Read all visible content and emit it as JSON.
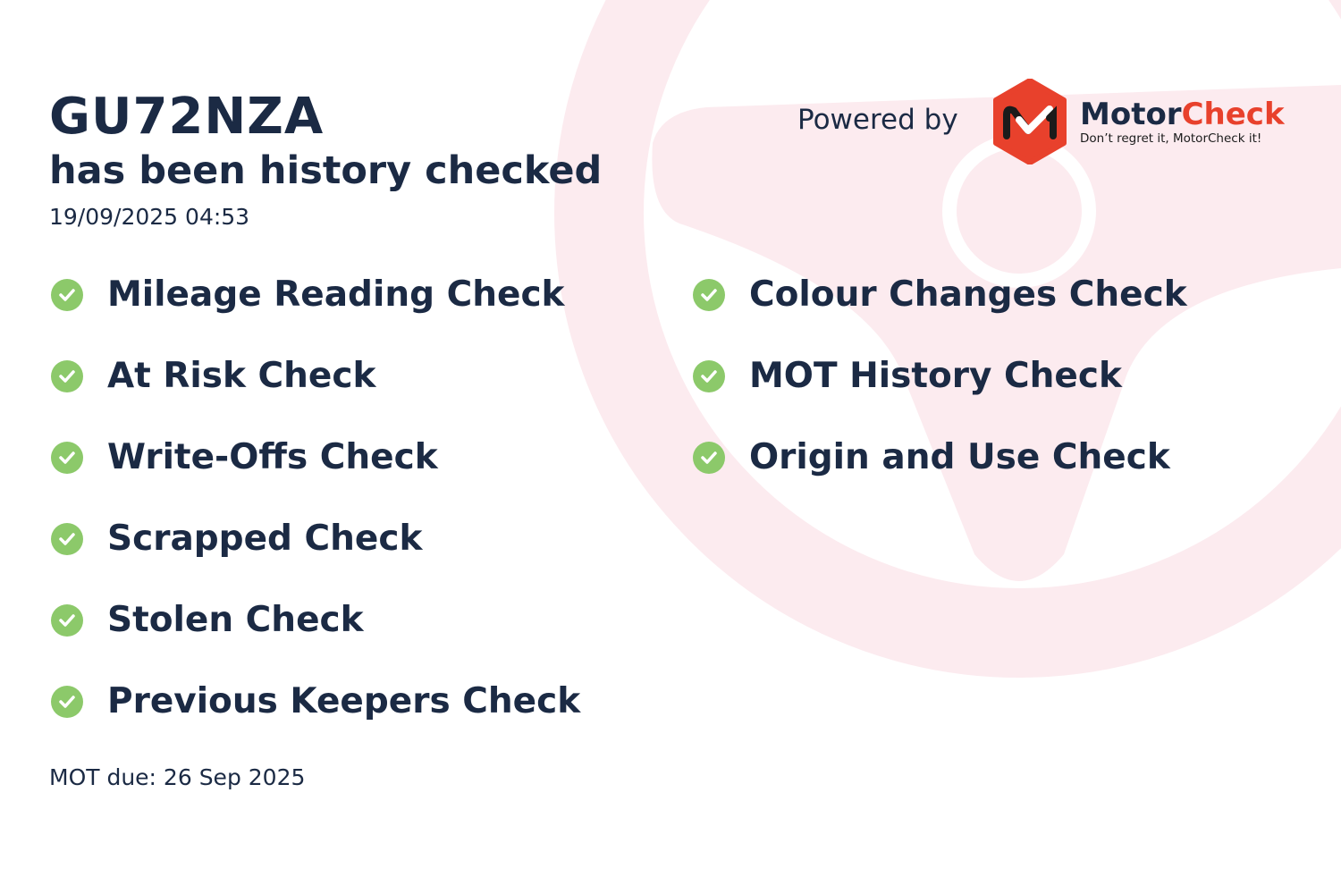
{
  "vehicle": {
    "registration": "GU72NZA",
    "status_text": "has been history checked",
    "checked_at": "19/09/2025 04:53",
    "mot_due": "MOT due: 26 Sep 2025"
  },
  "checks_left": [
    "Mileage Reading Check",
    "At Risk Check",
    "Write-Offs Check",
    "Scrapped Check",
    "Stolen Check",
    "Previous Keepers Check"
  ],
  "checks_right": [
    "Colour Changes Check",
    "MOT History Check",
    "Origin and Use Check"
  ],
  "branding": {
    "powered_by": "Powered by",
    "name_part1": "Motor",
    "name_part2": "Check",
    "tagline": "Don’t regret it, MotorCheck it!"
  },
  "icons": {
    "check": "check-circle-icon",
    "background": "steering-wheel-icon",
    "logo": "motorcheck-logo-icon"
  },
  "colors": {
    "text": "#1b2a44",
    "check": "#8cc96a",
    "brand_red": "#e8412c",
    "watermark": "#fcebef"
  }
}
